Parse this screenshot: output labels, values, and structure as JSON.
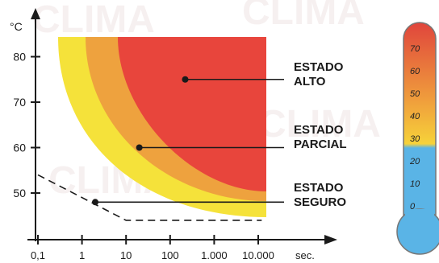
{
  "chart_data": {
    "type": "area",
    "x_scale": "log",
    "x_unit": "sec.",
    "y_unit": "°C",
    "x_ticks": [
      "0,1",
      "1",
      "10",
      "100",
      "1.000",
      "10.000"
    ],
    "y_ticks": [
      50,
      60,
      70,
      80
    ],
    "regions": [
      {
        "name": "ESTADO ALTO",
        "color": "#e8453c"
      },
      {
        "name": "ESTADO PARCIAL",
        "color": "#eea23e"
      },
      {
        "name": "ESTADO SEGURO",
        "color": "#f5e23a"
      }
    ],
    "labels": [
      {
        "line1": "ESTADO",
        "line2": "ALTO",
        "point": {
          "x": 220,
          "y": 75
        }
      },
      {
        "line1": "ESTADO",
        "line2": "PARCIAL",
        "point": {
          "x": 20,
          "y": 60
        }
      },
      {
        "line1": "ESTADO",
        "line2": "SEGURO",
        "point": {
          "x": 2,
          "y": 48
        }
      }
    ],
    "safe_boundary": [
      {
        "x": 0.1,
        "y": 54
      },
      {
        "x": 10,
        "y": 44
      },
      {
        "x": 12000,
        "y": 44
      }
    ],
    "thermometer": {
      "scale": [
        70,
        60,
        50,
        40,
        30,
        20,
        10,
        0
      ],
      "colors": {
        "top": "#e0453c",
        "mid": "#f5c03a",
        "bottom": "#5ab4e6"
      }
    },
    "watermark": "El Rey del CLIMA"
  }
}
